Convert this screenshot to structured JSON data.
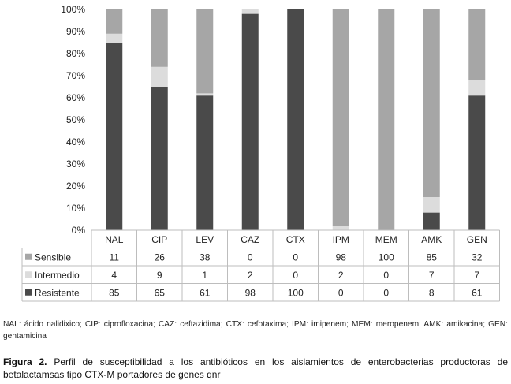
{
  "chart_data": {
    "type": "bar",
    "stacked": true,
    "categories": [
      "NAL",
      "CIP",
      "LEV",
      "CAZ",
      "CTX",
      "IPM",
      "MEM",
      "AMK",
      "GEN"
    ],
    "series": [
      {
        "name": "Sensible",
        "color": "#a6a6a6",
        "values": [
          11,
          26,
          38,
          0,
          0,
          98,
          100,
          85,
          32
        ]
      },
      {
        "name": "Intermedio",
        "color": "#dcdcdc",
        "values": [
          4,
          9,
          1,
          2,
          0,
          2,
          0,
          7,
          7
        ]
      },
      {
        "name": "Resistente",
        "color": "#4a4a4a",
        "values": [
          85,
          65,
          61,
          98,
          100,
          0,
          0,
          8,
          61
        ]
      }
    ],
    "yticks": [
      "0%",
      "10%",
      "20%",
      "30%",
      "40%",
      "50%",
      "60%",
      "70%",
      "80%",
      "90%",
      "100%"
    ],
    "ylim": [
      0,
      100
    ],
    "grid": false,
    "legend": "data-table-left"
  },
  "footnote": "NAL: ácido nalidixico; CIP: ciprofloxacina; CAZ: ceftazidima; CTX: cefotaxima; IPM: imipenem; MEM: meropenem; AMK: amikacina; GEN: gentamicina",
  "caption": {
    "label": "Figura 2.",
    "text": " Perfil de susceptibilidad a los antibióticos en los aislamientos de enterobacterias productoras de betalactamsas tipo CTX-M portadores de genes qnr"
  }
}
